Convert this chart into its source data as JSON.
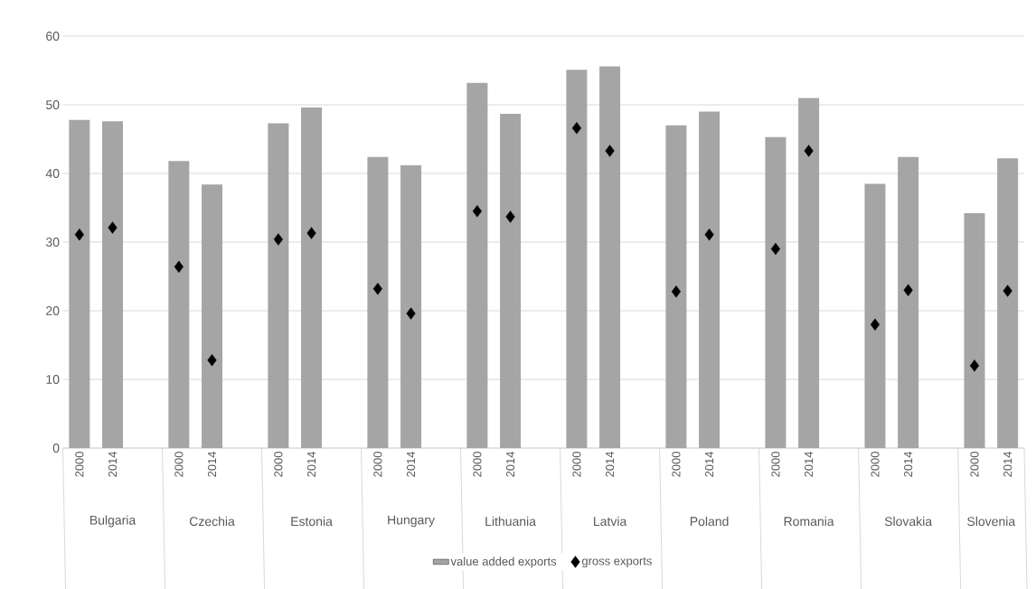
{
  "chart_data": {
    "type": "bar",
    "categories": [
      "2000",
      "2014",
      null,
      "2000",
      "2014",
      null,
      "2000",
      "2014",
      null,
      "2000",
      "2014",
      null,
      "2000",
      "2014",
      null,
      "2000",
      "2014",
      null,
      "2000",
      "2014",
      null,
      "2000",
      "2014",
      null,
      "2000",
      "2014",
      null,
      "2000",
      "2014"
    ],
    "series": [
      {
        "name": "value added exports",
        "color": "#a5a5a5",
        "values": [
          47.8,
          47.6,
          null,
          41.8,
          38.4,
          null,
          47.3,
          49.6,
          null,
          42.4,
          41.2,
          null,
          53.2,
          48.7,
          null,
          55.1,
          55.6,
          null,
          47.0,
          49.0,
          null,
          45.3,
          51.0,
          null,
          38.5,
          42.4,
          null,
          34.2,
          42.2
        ]
      },
      {
        "name": "gross exports",
        "type": "scatter",
        "color": "#000000",
        "values": [
          31.1,
          32.1,
          null,
          26.4,
          12.8,
          null,
          30.4,
          31.3,
          null,
          23.2,
          19.6,
          null,
          34.5,
          33.7,
          null,
          46.6,
          43.3,
          null,
          22.8,
          31.1,
          null,
          29.0,
          43.3,
          null,
          18.0,
          23.0,
          null,
          12.0,
          22.9
        ]
      }
    ],
    "marker": "diamond",
    "ylim": [
      0,
      60
    ],
    "yticks": [
      0,
      10,
      20,
      30,
      40,
      50,
      60
    ],
    "grid": "y",
    "legend": "bottom",
    "annotations": [
      "Bulgaria",
      "Czechia",
      "Estonia",
      "Hungary",
      "Lithuania",
      "Latvia",
      "Poland",
      "Romania",
      "Slovakia",
      "Slovenia"
    ]
  }
}
